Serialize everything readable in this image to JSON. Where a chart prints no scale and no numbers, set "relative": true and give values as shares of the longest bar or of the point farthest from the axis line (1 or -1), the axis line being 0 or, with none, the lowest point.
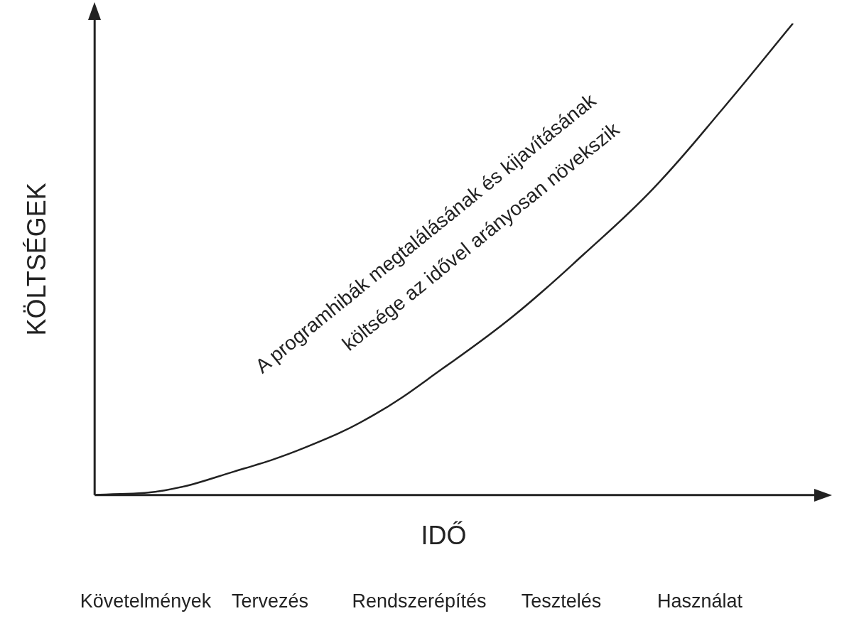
{
  "chart_data": {
    "type": "line",
    "relative": true,
    "xlabel": "IDŐ",
    "ylabel": "KÖLTSÉGEK",
    "categories": [
      null,
      null,
      null,
      null,
      null,
      null,
      null,
      null,
      null,
      null,
      null
    ],
    "values": [
      0,
      0.01,
      0.05,
      0.1,
      0.17,
      0.27,
      0.38,
      0.51,
      0.65,
      0.82,
      1
    ],
    "color": "#222222",
    "marker": "none",
    "legend": false,
    "grid": false,
    "annotations": [
      "A programhibák megtalálásának és kijavításának",
      "költsége az idővel arányosan növekszik",
      "Követelmények",
      "Tervezés",
      "Rendszerépítés",
      "Tesztelés",
      "Használat"
    ]
  }
}
